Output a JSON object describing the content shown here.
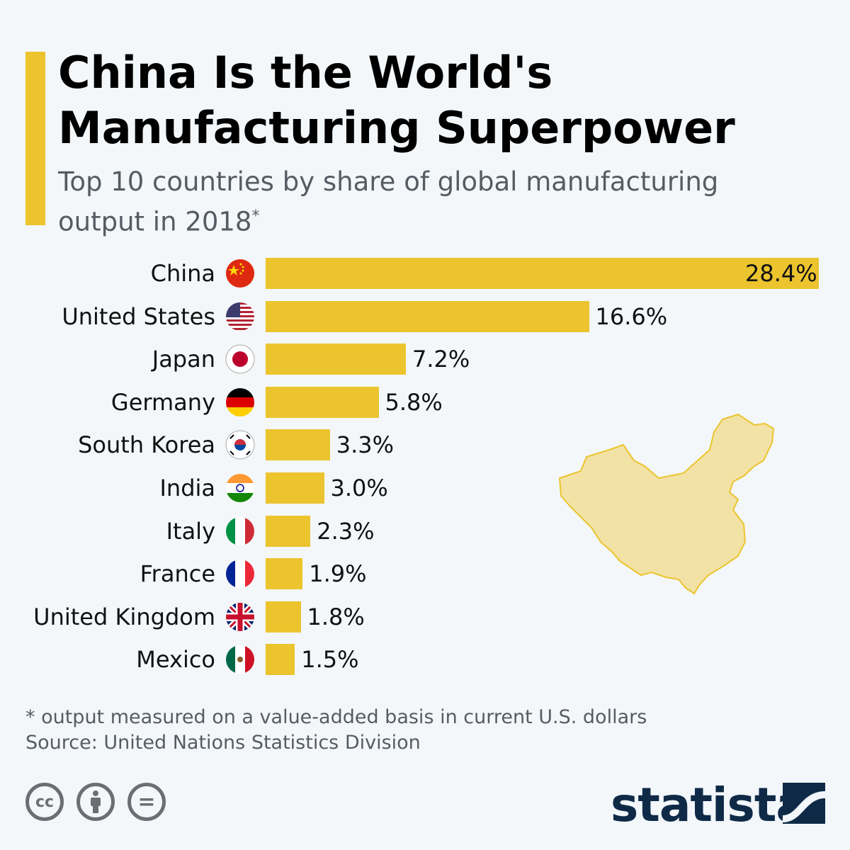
{
  "title": "China Is the World's Manufacturing Superpower",
  "subtitle": "Top 10 countries by share of global manufacturing output in 2018",
  "subtitle_mark": "*",
  "colors": {
    "bar": "#ebc42e",
    "background": "#f3f7fa",
    "text": "#111111",
    "logo": "#0f2a47",
    "map": "#f2e2a5"
  },
  "chart_data": {
    "type": "bar",
    "orientation": "horizontal",
    "categories": [
      "China",
      "United States",
      "Japan",
      "Germany",
      "South Korea",
      "India",
      "Italy",
      "France",
      "United Kingdom",
      "Mexico"
    ],
    "values": [
      28.4,
      16.6,
      7.2,
      5.8,
      3.3,
      3.0,
      2.3,
      1.9,
      1.8,
      1.5
    ],
    "value_labels": [
      "28.4%",
      "16.6%",
      "7.2%",
      "5.8%",
      "3.3%",
      "3.0%",
      "2.3%",
      "1.9%",
      "1.8%",
      "1.5%"
    ],
    "flags": [
      "china-flag",
      "usa-flag",
      "japan-flag",
      "germany-flag",
      "south-korea-flag",
      "india-flag",
      "italy-flag",
      "france-flag",
      "uk-flag",
      "mexico-flag"
    ],
    "xlim": [
      0,
      28.4
    ],
    "grid": false,
    "decoration": "china-map"
  },
  "footnote": "* output measured on a value-added basis in current U.S. dollars",
  "source": "Source: United Nations Statistics Division",
  "license_icons": [
    "cc-icon",
    "attribution-icon",
    "no-derivatives-icon"
  ],
  "license_glyphs": {
    "cc": "cc",
    "nd": "="
  },
  "logo": "statista"
}
